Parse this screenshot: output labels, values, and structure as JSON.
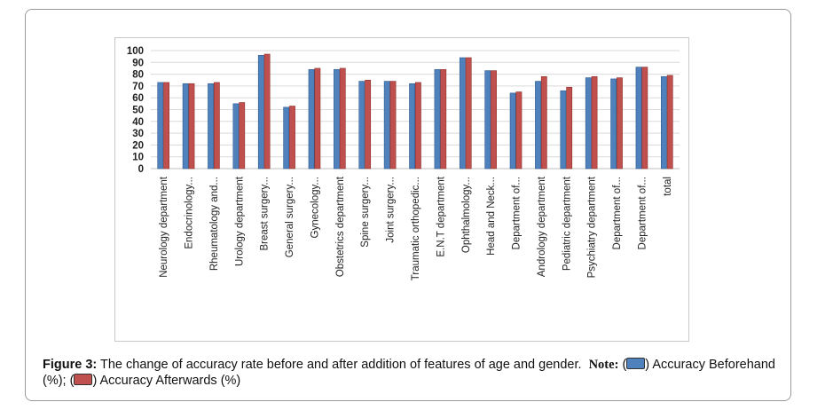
{
  "chart_data": {
    "type": "bar",
    "title": "",
    "xlabel": "",
    "ylabel": "",
    "ylim": [
      0,
      100
    ],
    "yticks": [
      0,
      10,
      20,
      30,
      40,
      50,
      60,
      70,
      80,
      90,
      100
    ],
    "grid": true,
    "categories": [
      "Neurology department",
      "Endocrinology...",
      "Rheumatology and...",
      "Urology department",
      "Breast surgery...",
      "General surgery...",
      "Gynecology...",
      "Obstetrics department",
      "Spine surgery...",
      "Joint surgery...",
      "Traumatic orthopedic...",
      "E.N.T department",
      "Ophthalmology...",
      "Head and Neck...",
      "Department of...",
      "Andrology department",
      "Pediatric department",
      "Psychiatry department",
      "Department of...",
      "Department of...",
      "total"
    ],
    "series": [
      {
        "name": "Accuracy Beforehand (%)",
        "color": "#4f81bd",
        "values": [
          73,
          72,
          72,
          55,
          96,
          52,
          84,
          84,
          74,
          74,
          72,
          84,
          94,
          83,
          64,
          74,
          66,
          77,
          76,
          86,
          78
        ]
      },
      {
        "name": "Accuracy Afterwards (%)",
        "color": "#c0504d",
        "values": [
          73,
          72,
          73,
          56,
          97,
          53,
          85,
          85,
          75,
          74,
          73,
          84,
          94,
          83,
          65,
          78,
          69,
          78,
          77,
          86,
          79
        ]
      }
    ]
  },
  "caption": {
    "figure_label": "Figure 3:",
    "text": " The change of accuracy rate before and after addition of features of age and gender.",
    "note_label": "Note:",
    "open_paren_1": "(",
    "legend_1": ") Accuracy Beforehand (%); ",
    "open_paren_2": "(",
    "legend_2": ") Accuracy Afterwards (%)"
  }
}
